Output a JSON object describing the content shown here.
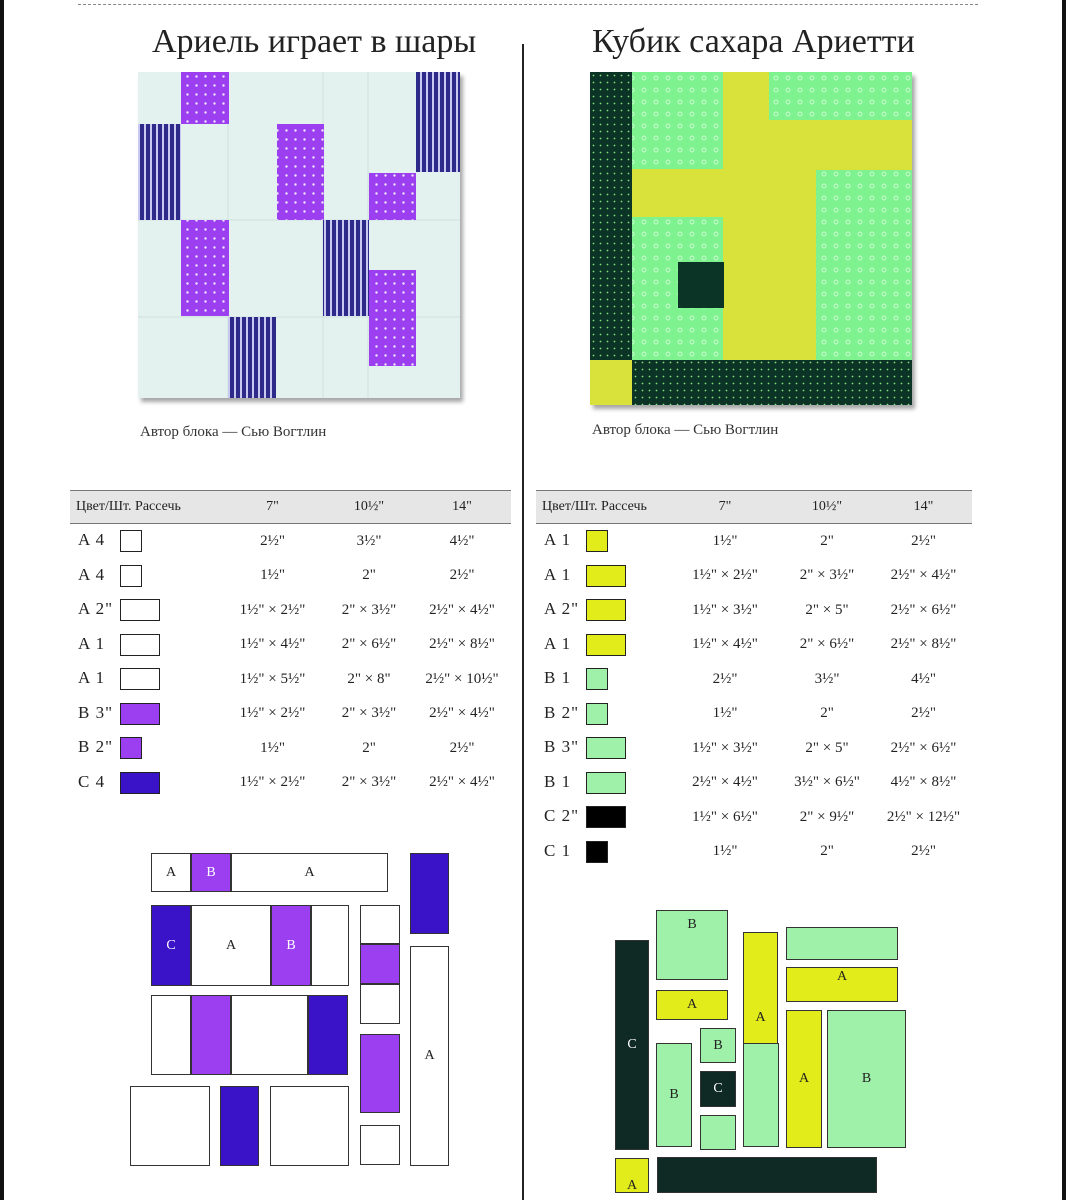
{
  "left": {
    "title": "Ариель играет в шары",
    "caption": "Автор блока — Сью Вогтлин",
    "table": {
      "headers": [
        "Цвет/Шт. Рассечь",
        "7\"",
        "10½\"",
        "14\""
      ],
      "rows": [
        {
          "label": "A 4",
          "color": "#ffffff",
          "shape": "sm",
          "c7": "2½\"",
          "c10": "3½\"",
          "c14": "4½\""
        },
        {
          "label": "A 4",
          "color": "#ffffff",
          "shape": "sm",
          "c7": "1½\"",
          "c10": "2\"",
          "c14": "2½\""
        },
        {
          "label": "A 2\"",
          "color": "#ffffff",
          "shape": "wd",
          "c7": "1½\" × 2½\"",
          "c10": "2\" × 3½\"",
          "c14": "2½\" × 4½\""
        },
        {
          "label": "A 1",
          "color": "#ffffff",
          "shape": "wd",
          "c7": "1½\" × 4½\"",
          "c10": "2\" × 6½\"",
          "c14": "2½\" × 8½\""
        },
        {
          "label": "A 1",
          "color": "#ffffff",
          "shape": "wd",
          "c7": "1½\" × 5½\"",
          "c10": "2\" × 8\"",
          "c14": "2½\" × 10½\""
        },
        {
          "label": "B 3\"",
          "color": "#9b3ff0",
          "shape": "wd",
          "c7": "1½\" × 2½\"",
          "c10": "2\" × 3½\"",
          "c14": "2½\" × 4½\""
        },
        {
          "label": "B 2\"",
          "color": "#9b3ff0",
          "shape": "sm",
          "c7": "1½\"",
          "c10": "2\"",
          "c14": "2½\""
        },
        {
          "label": "C 4",
          "color": "#3a12c8",
          "shape": "wd",
          "c7": "1½\" × 2½\"",
          "c10": "2\" × 3½\"",
          "c14": "2½\" × 4½\""
        }
      ]
    },
    "diagram_labels": {
      "a": "A",
      "b": "B",
      "c": "C"
    }
  },
  "right": {
    "title": "Кубик сахара Ариетти",
    "caption": "Автор блока — Сью Вогтлин",
    "table": {
      "headers": [
        "Цвет/Шт. Рассечь",
        "7\"",
        "10½\"",
        "14\""
      ],
      "rows": [
        {
          "label": "A 1",
          "color": "#e2ec1a",
          "shape": "sm",
          "c7": "1½\"",
          "c10": "2\"",
          "c14": "2½\""
        },
        {
          "label": "A 1",
          "color": "#e2ec1a",
          "shape": "wd",
          "c7": "1½\" × 2½\"",
          "c10": "2\" × 3½\"",
          "c14": "2½\" × 4½\""
        },
        {
          "label": "A 2\"",
          "color": "#e2ec1a",
          "shape": "wd",
          "c7": "1½\" × 3½\"",
          "c10": "2\" × 5\"",
          "c14": "2½\" × 6½\""
        },
        {
          "label": "A 1",
          "color": "#e2ec1a",
          "shape": "wd",
          "c7": "1½\" × 4½\"",
          "c10": "2\" × 6½\"",
          "c14": "2½\" × 8½\""
        },
        {
          "label": "B 1",
          "color": "#9ff0a8",
          "shape": "sm",
          "c7": "2½\"",
          "c10": "3½\"",
          "c14": "4½\""
        },
        {
          "label": "B 2\"",
          "color": "#9ff0a8",
          "shape": "sm",
          "c7": "1½\"",
          "c10": "2\"",
          "c14": "2½\""
        },
        {
          "label": "B 3\"",
          "color": "#9ff0a8",
          "shape": "wd",
          "c7": "1½\" × 3½\"",
          "c10": "2\" × 5\"",
          "c14": "2½\" × 6½\""
        },
        {
          "label": "B 1",
          "color": "#9ff0a8",
          "shape": "wd",
          "c7": "2½\" × 4½\"",
          "c10": "3½\" × 6½\"",
          "c14": "4½\" × 8½\""
        },
        {
          "label": "C 2\"",
          "color": "#000000",
          "shape": "wd",
          "c7": "1½\" × 6½\"",
          "c10": "2\" × 9½\"",
          "c14": "2½\" × 12½\""
        },
        {
          "label": "C 1",
          "color": "#000000",
          "shape": "sm",
          "c7": "1½\"",
          "c10": "2\"",
          "c14": "2½\""
        }
      ]
    },
    "diagram_labels": {
      "a": "A",
      "b": "B",
      "c": "C"
    }
  },
  "colors": {
    "purple": "#9b3ff0",
    "indigo": "#3a12c8",
    "lime": "#e2ec1a",
    "mint": "#9ff0a8",
    "darkgreen": "#0f2a24",
    "pale": "#e3f2ee"
  }
}
